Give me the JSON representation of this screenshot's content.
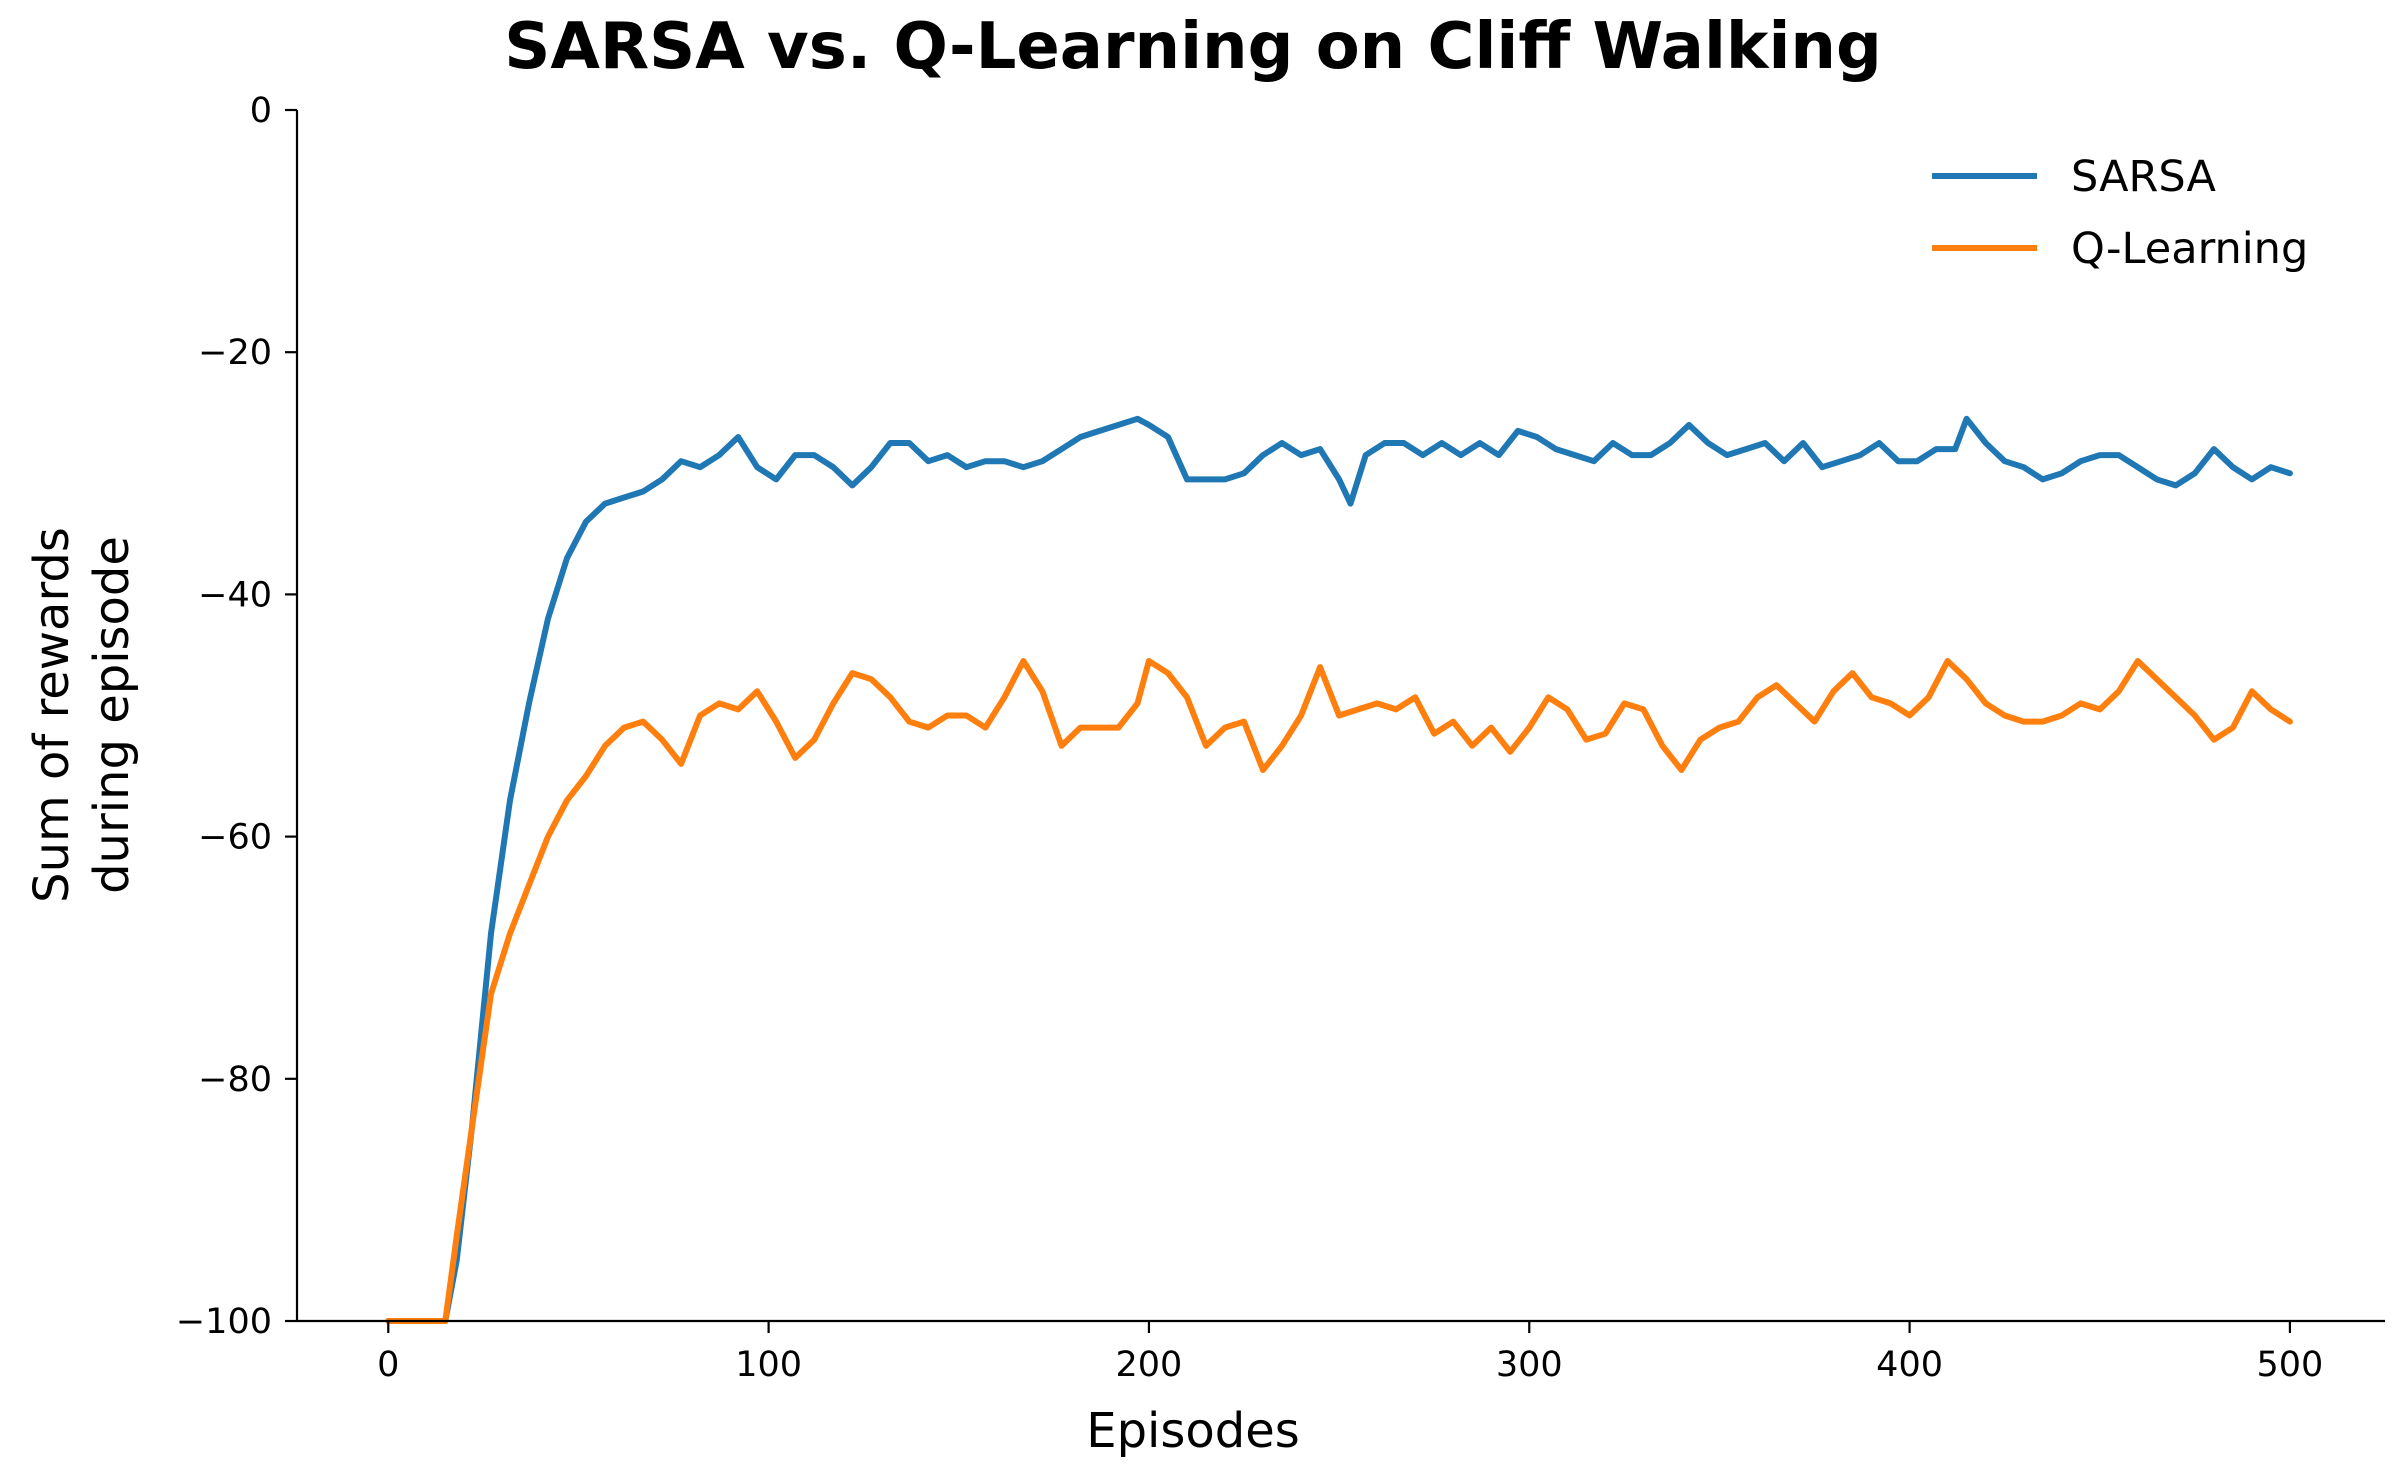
{
  "chart_data": {
    "type": "line",
    "title": "SARSA vs. Q-Learning on Cliff Walking",
    "xlabel": "Episodes",
    "ylabel_lines": [
      "Sum of rewards",
      "during episode"
    ],
    "xlim": [
      -24,
      525
    ],
    "ylim": [
      -100,
      0
    ],
    "xticks": [
      0,
      100,
      200,
      300,
      400,
      500
    ],
    "yticks": [
      0,
      -20,
      -40,
      -60,
      -80,
      -100
    ],
    "ytick_labels": [
      "0",
      "−20",
      "−40",
      "−60",
      "−80",
      "−100"
    ],
    "grid": false,
    "legend_position": "top-right",
    "series": [
      {
        "name": "SARSA",
        "color": "#1f77b4",
        "x": [
          0,
          15,
          18,
          22,
          27,
          32,
          37,
          42,
          47,
          52,
          57,
          62,
          67,
          72,
          77,
          82,
          87,
          92,
          97,
          102,
          107,
          112,
          117,
          122,
          127,
          132,
          137,
          142,
          147,
          152,
          157,
          162,
          167,
          172,
          177,
          182,
          187,
          192,
          197,
          200,
          205,
          210,
          215,
          220,
          225,
          230,
          235,
          240,
          245,
          250,
          253,
          257,
          262,
          267,
          272,
          277,
          282,
          287,
          292,
          297,
          302,
          307,
          312,
          317,
          322,
          327,
          332,
          337,
          342,
          347,
          352,
          357,
          362,
          367,
          372,
          377,
          382,
          387,
          392,
          397,
          402,
          407,
          412,
          415,
          420,
          425,
          430,
          435,
          440,
          445,
          450,
          455,
          460,
          465,
          470,
          475,
          480,
          485,
          490,
          495,
          500
        ],
        "y": [
          -100,
          -100,
          -95,
          -84,
          -68,
          -57,
          -49,
          -42,
          -37,
          -34,
          -32.5,
          -32,
          -31.5,
          -30.5,
          -29,
          -29.5,
          -28.5,
          -27,
          -29.5,
          -30.5,
          -28.5,
          -28.5,
          -29.5,
          -31,
          -29.5,
          -27.5,
          -27.5,
          -29,
          -28.5,
          -29.5,
          -29,
          -29,
          -29.5,
          -29,
          -28,
          -27,
          -26.5,
          -26,
          -25.5,
          -26,
          -27,
          -30.5,
          -30.5,
          -30.5,
          -30,
          -28.5,
          -27.5,
          -28.5,
          -28,
          -30.5,
          -32.5,
          -28.5,
          -27.5,
          -27.5,
          -28.5,
          -27.5,
          -28.5,
          -27.5,
          -28.5,
          -26.5,
          -27,
          -28,
          -28.5,
          -29,
          -27.5,
          -28.5,
          -28.5,
          -27.5,
          -26,
          -27.5,
          -28.5,
          -28,
          -27.5,
          -29,
          -27.5,
          -29.5,
          -29,
          -28.5,
          -27.5,
          -29,
          -29,
          -28,
          -28,
          -25.5,
          -27.5,
          -29,
          -29.5,
          -30.5,
          -30,
          -29,
          -28.5,
          -28.5,
          -29.5,
          -30.5,
          -31,
          -30,
          -28,
          -29.5,
          -30.5,
          -29.5,
          -30
        ]
      },
      {
        "name": "Q-Learning",
        "color": "#ff7f0e",
        "x": [
          0,
          15,
          18,
          22,
          27,
          32,
          37,
          42,
          47,
          52,
          57,
          62,
          67,
          72,
          77,
          82,
          87,
          92,
          97,
          102,
          107,
          112,
          117,
          122,
          127,
          132,
          137,
          142,
          147,
          152,
          157,
          162,
          167,
          172,
          177,
          182,
          187,
          192,
          197,
          200,
          205,
          210,
          215,
          220,
          225,
          230,
          235,
          240,
          245,
          250,
          255,
          260,
          265,
          270,
          275,
          280,
          285,
          290,
          295,
          300,
          305,
          310,
          315,
          320,
          325,
          330,
          335,
          340,
          345,
          350,
          355,
          360,
          365,
          370,
          375,
          380,
          385,
          390,
          395,
          400,
          405,
          410,
          415,
          420,
          425,
          430,
          435,
          440,
          445,
          450,
          455,
          460,
          465,
          470,
          475,
          480,
          485,
          490,
          495,
          500
        ],
        "y": [
          -100,
          -100,
          -93,
          -84,
          -73,
          -68,
          -64,
          -60,
          -57,
          -55,
          -52.5,
          -51,
          -50.5,
          -52,
          -54,
          -50,
          -49,
          -49.5,
          -48,
          -50.5,
          -53.5,
          -52,
          -49,
          -46.5,
          -47,
          -48.5,
          -50.5,
          -51,
          -50,
          -50,
          -51,
          -48.5,
          -45.5,
          -48,
          -52.5,
          -51,
          -51,
          -51,
          -49,
          -45.5,
          -46.5,
          -48.5,
          -52.5,
          -51,
          -50.5,
          -54.5,
          -52.5,
          -50,
          -46,
          -50,
          -49.5,
          -49,
          -49.5,
          -48.5,
          -51.5,
          -50.5,
          -52.5,
          -51,
          -53,
          -51,
          -48.5,
          -49.5,
          -52,
          -51.5,
          -49,
          -49.5,
          -52.5,
          -54.5,
          -52,
          -51,
          -50.5,
          -48.5,
          -47.5,
          -49,
          -50.5,
          -48,
          -46.5,
          -48.5,
          -49,
          -50,
          -48.5,
          -45.5,
          -47,
          -49,
          -50,
          -50.5,
          -50.5,
          -50,
          -49,
          -49.5,
          -48,
          -45.5,
          -47,
          -48.5,
          -50,
          -52,
          -51,
          -48,
          -49.5,
          -50.5
        ]
      }
    ]
  }
}
